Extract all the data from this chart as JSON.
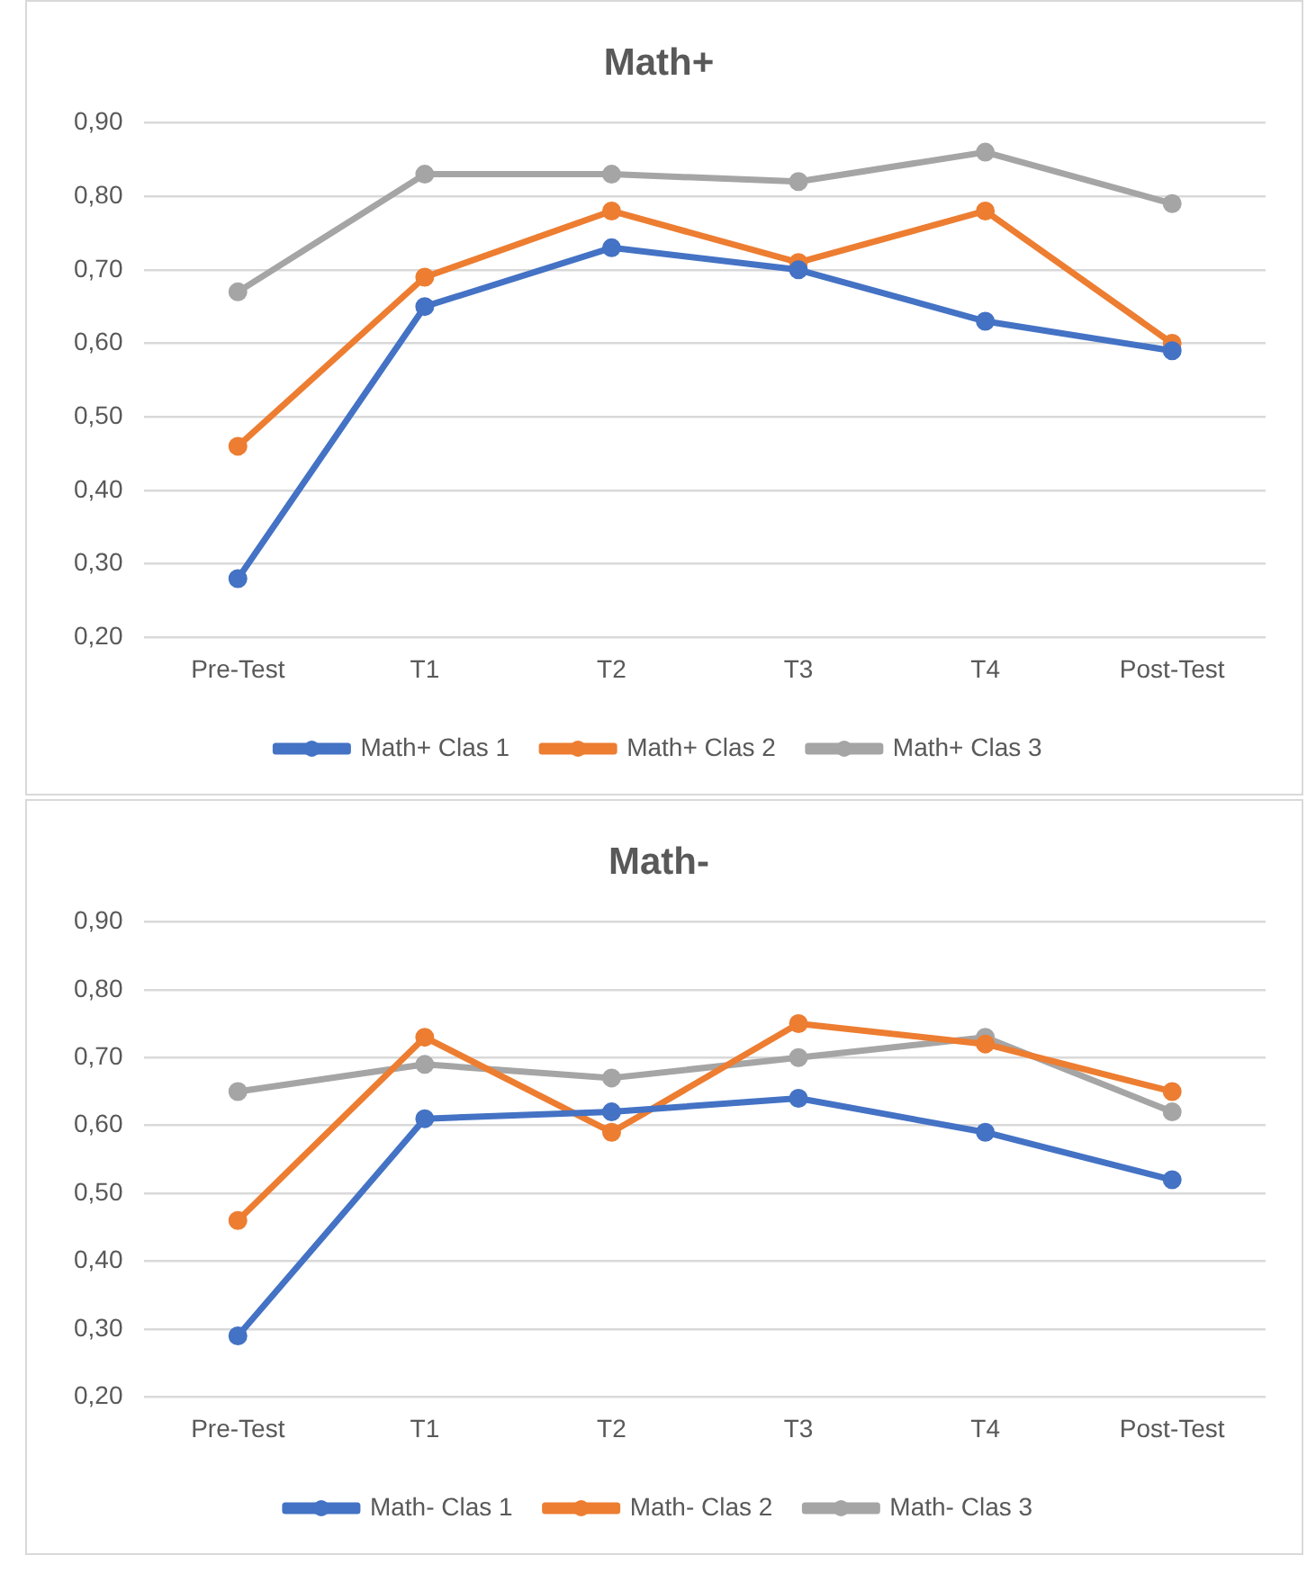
{
  "chart_data": [
    {
      "type": "line",
      "title": "Math+",
      "categories": [
        "Pre-Test",
        "T1",
        "T2",
        "T3",
        "T4",
        "Post-Test"
      ],
      "series": [
        {
          "name": "Math+ Clas 1",
          "color": "#4472c4",
          "values": [
            0.28,
            0.65,
            0.73,
            0.7,
            0.63,
            0.59
          ]
        },
        {
          "name": "Math+ Clas 2",
          "color": "#ed7d31",
          "values": [
            0.46,
            0.69,
            0.78,
            0.71,
            0.78,
            0.6
          ]
        },
        {
          "name": "Math+ Clas 3",
          "color": "#a5a5a5",
          "values": [
            0.67,
            0.83,
            0.83,
            0.82,
            0.86,
            0.79
          ]
        }
      ],
      "ylim": [
        0.2,
        0.9
      ],
      "yticks": [
        {
          "value": 0.2,
          "label": "0,20"
        },
        {
          "value": 0.3,
          "label": "0,30"
        },
        {
          "value": 0.4,
          "label": "0,40"
        },
        {
          "value": 0.5,
          "label": "0,50"
        },
        {
          "value": 0.6,
          "label": "0,60"
        },
        {
          "value": 0.7,
          "label": "0,70"
        },
        {
          "value": 0.8,
          "label": "0,80"
        },
        {
          "value": 0.9,
          "label": "0,90"
        }
      ],
      "grid": "y",
      "legend": "bottom",
      "marker": "circle",
      "line_style": "solid"
    },
    {
      "type": "line",
      "title": "Math-",
      "categories": [
        "Pre-Test",
        "T1",
        "T2",
        "T3",
        "T4",
        "Post-Test"
      ],
      "series": [
        {
          "name": "Math- Clas 1",
          "color": "#4472c4",
          "values": [
            0.29,
            0.61,
            0.62,
            0.64,
            0.59,
            0.52
          ]
        },
        {
          "name": "Math- Clas 2",
          "color": "#ed7d31",
          "values": [
            0.46,
            0.73,
            0.59,
            0.75,
            0.72,
            0.65
          ]
        },
        {
          "name": "Math- Clas 3",
          "color": "#a5a5a5",
          "values": [
            0.65,
            0.69,
            0.67,
            0.7,
            0.73,
            0.62
          ]
        }
      ],
      "ylim": [
        0.2,
        0.9
      ],
      "yticks": [
        {
          "value": 0.2,
          "label": "0,20"
        },
        {
          "value": 0.3,
          "label": "0,30"
        },
        {
          "value": 0.4,
          "label": "0,40"
        },
        {
          "value": 0.5,
          "label": "0,50"
        },
        {
          "value": 0.6,
          "label": "0,60"
        },
        {
          "value": 0.7,
          "label": "0,70"
        },
        {
          "value": 0.8,
          "label": "0,80"
        },
        {
          "value": 0.9,
          "label": "0,90"
        }
      ],
      "grid": "y",
      "legend": "bottom",
      "marker": "circle",
      "line_style": "solid"
    }
  ]
}
